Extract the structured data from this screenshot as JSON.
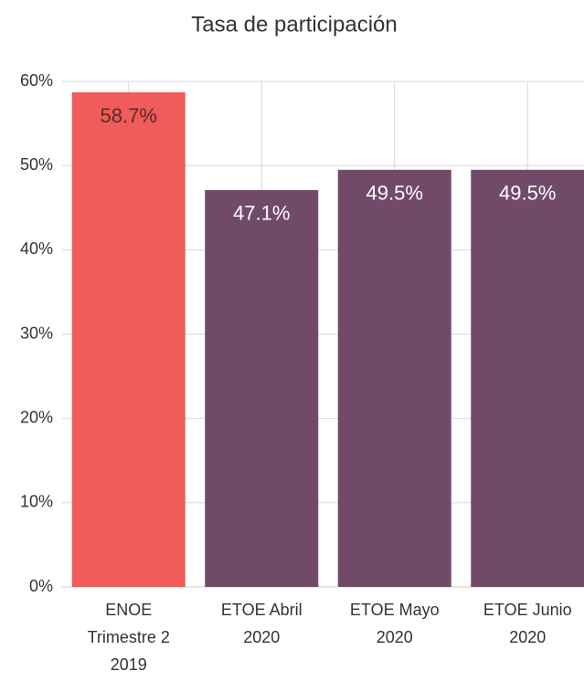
{
  "chart_data": {
    "type": "bar",
    "title": "Tasa de participación",
    "categories": [
      "ENOE\nTrimestre 2\n2019",
      "ETOE Abril\n2020",
      "ETOE Mayo\n2020",
      "ETOE Junio\n2020"
    ],
    "values": [
      58.7,
      47.1,
      49.5,
      49.5
    ],
    "value_labels": [
      "58.7%",
      "47.1%",
      "49.5%",
      "49.5%"
    ],
    "colors": [
      "#f05b5b",
      "#714a69",
      "#714a69",
      "#714a69"
    ],
    "ylim": [
      0,
      60
    ],
    "yticks": [
      {
        "value": 0,
        "label": "0%"
      },
      {
        "value": 10,
        "label": "10%"
      },
      {
        "value": 20,
        "label": "20%"
      },
      {
        "value": 30,
        "label": "30%"
      },
      {
        "value": 40,
        "label": "40%"
      },
      {
        "value": 50,
        "label": "50%"
      },
      {
        "value": 60,
        "label": "60%"
      }
    ],
    "grid": true
  }
}
